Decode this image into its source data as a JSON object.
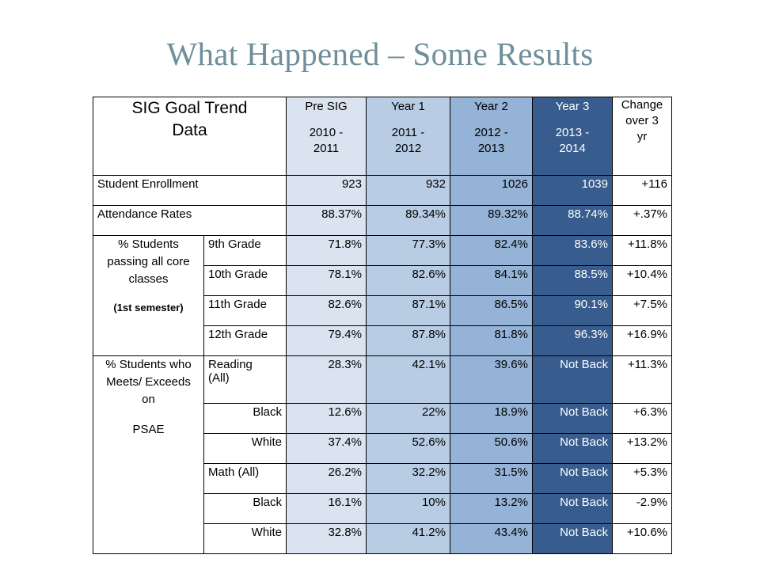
{
  "title": "What Happened – Some Results",
  "table": {
    "header": {
      "title_line1": "SIG Goal Trend",
      "title_line2": "Data",
      "columns": [
        {
          "label": "Pre SIG",
          "range_line1": "2010 -",
          "range_line2": "2011"
        },
        {
          "label": "Year 1",
          "range_line1": "2011 -",
          "range_line2": "2012"
        },
        {
          "label": "Year 2",
          "range_line1": "2012 -",
          "range_line2": "2013"
        },
        {
          "label": "Year 3",
          "range_line1": "2013 -",
          "range_line2": "2014"
        }
      ],
      "change_line1": "Change",
      "change_line2": "over 3",
      "change_line3": "yr"
    },
    "enrollment": {
      "label": "Student Enrollment",
      "values": [
        "923",
        "932",
        "1026",
        "1039"
      ],
      "change": "+116"
    },
    "attendance": {
      "label": "Attendance Rates",
      "values": [
        "88.37%",
        "89.34%",
        "89.32%",
        "88.74%"
      ],
      "change": "+.37%"
    },
    "passing": {
      "label_line1": "% Students",
      "label_line2": "passing all core",
      "label_line3": "classes",
      "label_note": "(1st semester)",
      "rows": [
        {
          "label": "9th Grade",
          "values": [
            "71.8%",
            "77.3%",
            "82.4%",
            "83.6%"
          ],
          "change": "+11.8%"
        },
        {
          "label": "10th Grade",
          "values": [
            "78.1%",
            "82.6%",
            "84.1%",
            "88.5%"
          ],
          "change": "+10.4%"
        },
        {
          "label": "11th Grade",
          "values": [
            "82.6%",
            "87.1%",
            "86.5%",
            "90.1%"
          ],
          "change": "+7.5%"
        },
        {
          "label": "12th Grade",
          "values": [
            "79.4%",
            "87.8%",
            "81.8%",
            "96.3%"
          ],
          "change": "+16.9%"
        }
      ]
    },
    "psae": {
      "label_line1": "% Students who",
      "label_line2": "Meets/ Exceeds",
      "label_line3": "on",
      "label_line4": "PSAE",
      "rows": [
        {
          "label_line1": "Reading",
          "label_line2": "(All)",
          "values": [
            "28.3%",
            "42.1%",
            "39.6%",
            "Not Back"
          ],
          "change": "+11.3%"
        },
        {
          "label": "Black",
          "values": [
            "12.6%",
            "22%",
            "18.9%",
            "Not Back"
          ],
          "change": "+6.3%"
        },
        {
          "label": "White",
          "values": [
            "37.4%",
            "52.6%",
            "50.6%",
            "Not Back"
          ],
          "change": "+13.2%"
        },
        {
          "label": "Math (All)",
          "values": [
            "26.2%",
            "32.2%",
            "31.5%",
            "Not Back"
          ],
          "change": "+5.3%"
        },
        {
          "label": "Black",
          "values": [
            "16.1%",
            "10%",
            "13.2%",
            "Not Back"
          ],
          "change": "-2.9%"
        },
        {
          "label": "White",
          "values": [
            "32.8%",
            "41.2%",
            "43.4%",
            "Not Back"
          ],
          "change": "+10.6%"
        }
      ]
    }
  }
}
